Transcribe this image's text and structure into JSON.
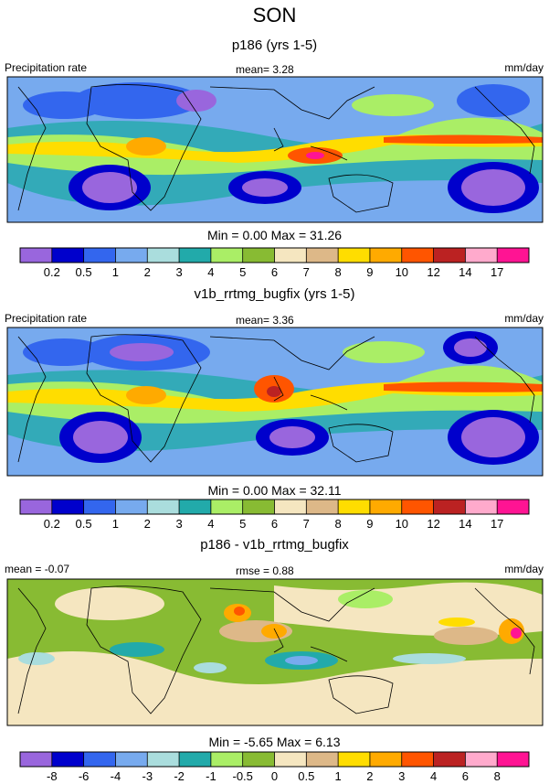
{
  "page": {
    "season": "SON"
  },
  "chart_data": [
    {
      "type": "heatmap",
      "title": "p186 (yrs 1-5)",
      "left_label": "Precipitation rate",
      "center_label": "mean=   3.28",
      "units": "mm/day",
      "min_max": "Min =   0.00 Max =  31.26",
      "colorbar": {
        "colors": [
          "#9966dd",
          "#0000cc",
          "#3366ee",
          "#77aaee",
          "#aadddd",
          "#22aaaa",
          "#aaee66",
          "#88bb33",
          "#f5e6c0",
          "#ddb888",
          "#ffdd00",
          "#ffaa00",
          "#ff5500",
          "#bb2222",
          "#ffaacc",
          "#ff1493"
        ],
        "ticks": [
          "0.2",
          "0.5",
          "1",
          "2",
          "3",
          "4",
          "5",
          "6",
          "7",
          "8",
          "9",
          "10",
          "12",
          "14",
          "17"
        ]
      }
    },
    {
      "type": "heatmap",
      "title": "v1b_rrtmg_bugfix (yrs 1-5)",
      "left_label": "Precipitation rate",
      "center_label": "mean=   3.36",
      "units": "mm/day",
      "min_max": "Min =   0.00 Max =  32.11",
      "colorbar": {
        "colors": [
          "#9966dd",
          "#0000cc",
          "#3366ee",
          "#77aaee",
          "#aadddd",
          "#22aaaa",
          "#aaee66",
          "#88bb33",
          "#f5e6c0",
          "#ddb888",
          "#ffdd00",
          "#ffaa00",
          "#ff5500",
          "#bb2222",
          "#ffaacc",
          "#ff1493"
        ],
        "ticks": [
          "0.2",
          "0.5",
          "1",
          "2",
          "3",
          "4",
          "5",
          "6",
          "7",
          "8",
          "9",
          "10",
          "12",
          "14",
          "17"
        ]
      }
    },
    {
      "type": "heatmap",
      "title": "p186 - v1b_rrtmg_bugfix",
      "left_label": "mean =  -0.07",
      "center_label": "rmse =   0.88",
      "units": "mm/day",
      "min_max": "Min =  -5.65 Max =   6.13",
      "colorbar": {
        "colors": [
          "#9966dd",
          "#0000cc",
          "#3366ee",
          "#77aaee",
          "#aadddd",
          "#22aaaa",
          "#aaee66",
          "#88bb33",
          "#f5e6c0",
          "#ddb888",
          "#ffdd00",
          "#ffaa00",
          "#ff5500",
          "#bb2222",
          "#ffaacc",
          "#ff1493"
        ],
        "ticks": [
          "-8",
          "-6",
          "-4",
          "-3",
          "-2",
          "-1",
          "-0.5",
          "0",
          "0.5",
          "1",
          "2",
          "3",
          "4",
          "6",
          "8"
        ]
      }
    }
  ]
}
